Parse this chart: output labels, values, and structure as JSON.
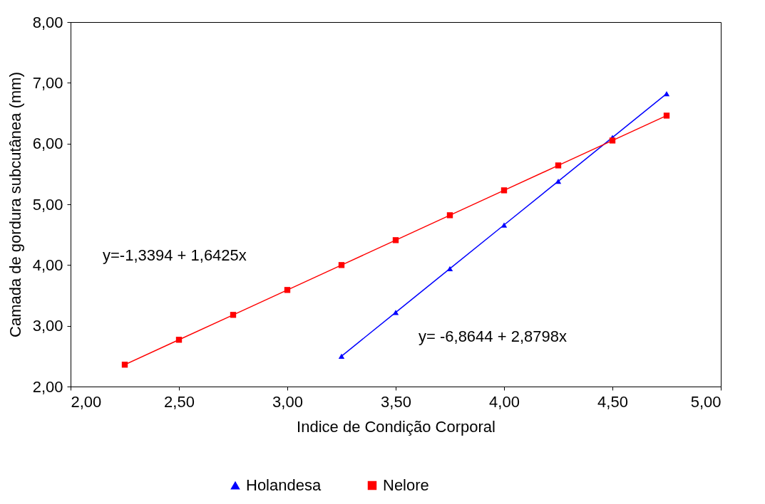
{
  "chart_data": {
    "type": "line",
    "xlabel": "Indice de Condição Corporal",
    "ylabel": "Camada de gordura subcutânea (mm)",
    "series": [
      {
        "name": "Holandesa",
        "color": "#0000ff",
        "marker": "triangle",
        "x": [
          3.25,
          3.5,
          3.75,
          4.0,
          4.25,
          4.5,
          4.75
        ],
        "values": [
          2.5,
          3.22,
          3.94,
          4.66,
          5.38,
          6.1,
          6.82
        ]
      },
      {
        "name": "Nelore",
        "color": "#ff0000",
        "marker": "square",
        "x": [
          2.25,
          2.5,
          2.75,
          3.0,
          3.25,
          3.5,
          3.75,
          4.0,
          4.25,
          4.5,
          4.75
        ],
        "values": [
          2.36,
          2.77,
          3.18,
          3.59,
          4.0,
          4.41,
          4.82,
          5.23,
          5.64,
          6.05,
          6.46
        ]
      }
    ],
    "xlim": [
      2,
      5
    ],
    "xticks": [
      {
        "value": 2,
        "label": "2,00"
      },
      {
        "value": 2.5,
        "label": "2,50"
      },
      {
        "value": 3,
        "label": "3,00"
      },
      {
        "value": 3.5,
        "label": "3,50"
      },
      {
        "value": 4,
        "label": "4,00"
      },
      {
        "value": 4.5,
        "label": "4,50"
      },
      {
        "value": 5,
        "label": "5,00"
      }
    ],
    "ylim": [
      2,
      8
    ],
    "yticks": [
      {
        "value": 2,
        "label": "2,00"
      },
      {
        "value": 3,
        "label": "3,00"
      },
      {
        "value": 4,
        "label": "4,00"
      },
      {
        "value": 5,
        "label": "5,00"
      },
      {
        "value": 6,
        "label": "6,00"
      },
      {
        "value": 7,
        "label": "7,00"
      },
      {
        "value": 8,
        "label": "8,00"
      }
    ],
    "annotations": [
      "y=-1,3394 + 1,6425x",
      "y= -6,8644 + 2,8798x"
    ],
    "grid": false,
    "legend": "bottom",
    "line_style": "solid"
  }
}
